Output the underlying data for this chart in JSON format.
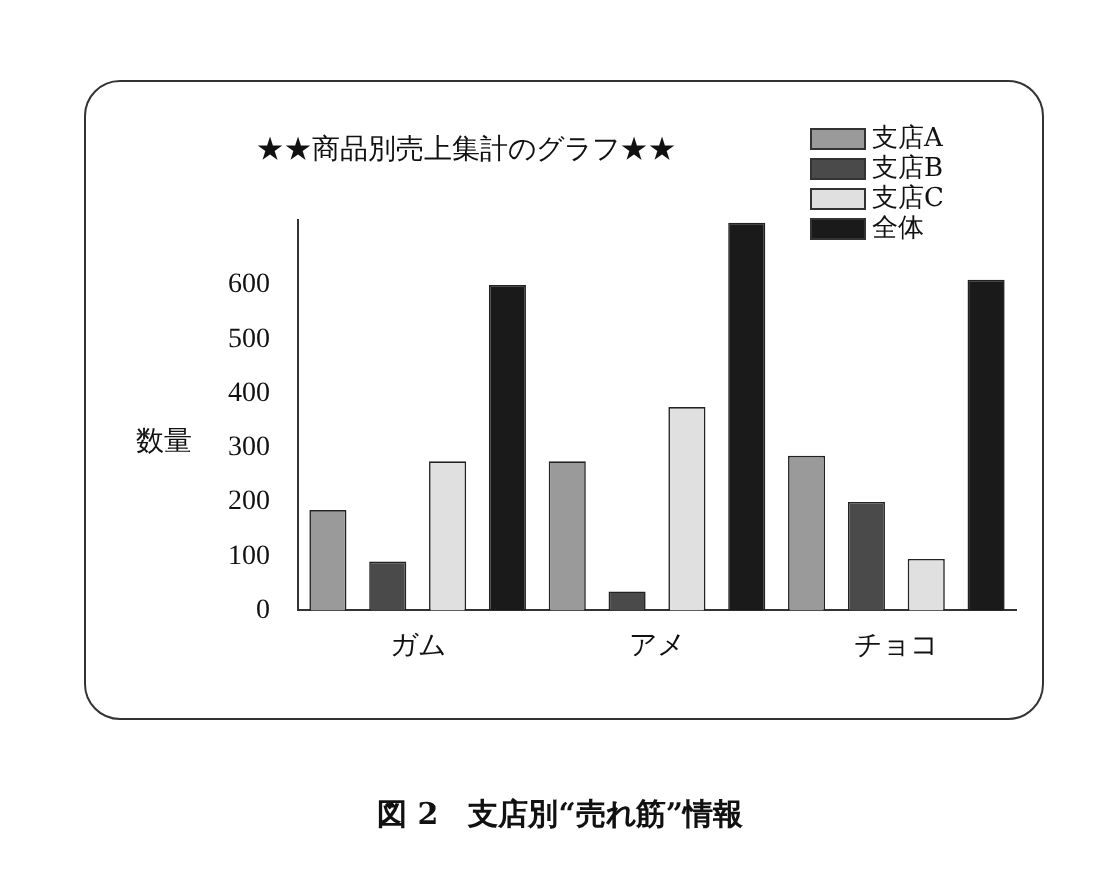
{
  "chart_data": {
    "type": "bar",
    "title": "★★商品別売上集計のグラフ★★",
    "ylabel": "数量",
    "categories": [
      "ガム",
      "アメ",
      "チョコ"
    ],
    "series": [
      {
        "name": "支店A",
        "color": "#9a9a9a",
        "values": [
          185,
          275,
          285
        ]
      },
      {
        "name": "支店B",
        "color": "#4a4a4a",
        "values": [
          90,
          35,
          200
        ]
      },
      {
        "name": "支店C",
        "color": "#e0e0e0",
        "values": [
          275,
          375,
          95
        ]
      },
      {
        "name": "全体",
        "color": "#1a1a1a",
        "values": [
          600,
          715,
          610
        ]
      }
    ],
    "ylim": [
      0,
      720
    ],
    "yticks": [
      0,
      100,
      200,
      300,
      400,
      500,
      600
    ],
    "grid": false,
    "legend": "top right",
    "annotations": [
      "図 2　支店別“売れ筋”情報"
    ]
  }
}
